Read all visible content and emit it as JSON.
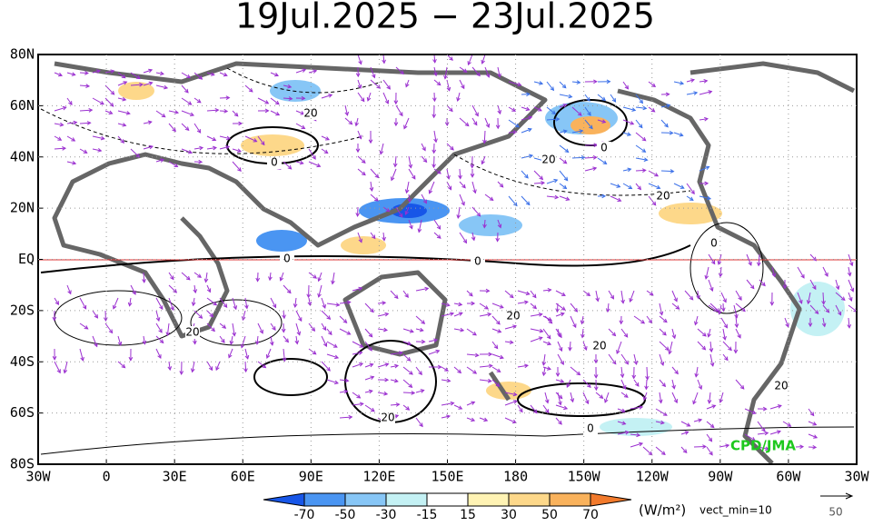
{
  "title": "19Jul.2025 − 23Jul.2025",
  "lat_labels": [
    "80N",
    "60N",
    "40N",
    "20N",
    "EQ",
    "20S",
    "40S",
    "60S",
    "80S"
  ],
  "lon_labels": [
    "30W",
    "0",
    "30E",
    "60E",
    "90E",
    "120E",
    "150E",
    "180",
    "150W",
    "120W",
    "90W",
    "60W",
    "30W"
  ],
  "contour_labels": [
    "20",
    "0",
    "0",
    "0",
    "0",
    "20",
    "20",
    "20",
    "20",
    "0",
    "20",
    "20",
    "0",
    "20"
  ],
  "colorbar": {
    "ticks": [
      -70,
      -50,
      -30,
      -15,
      15,
      30,
      50,
      70
    ],
    "colors": [
      "#1756e8",
      "#4a95f2",
      "#87c6f6",
      "#c4f1f4",
      "#ffffff",
      "#fff3b4",
      "#fdd88a",
      "#f9b25c",
      "#f27a2c"
    ],
    "unit": "(W/m²)"
  },
  "vector_note": "vect_min=10",
  "reference_vector": "50",
  "credit": "CPD/JMA"
}
